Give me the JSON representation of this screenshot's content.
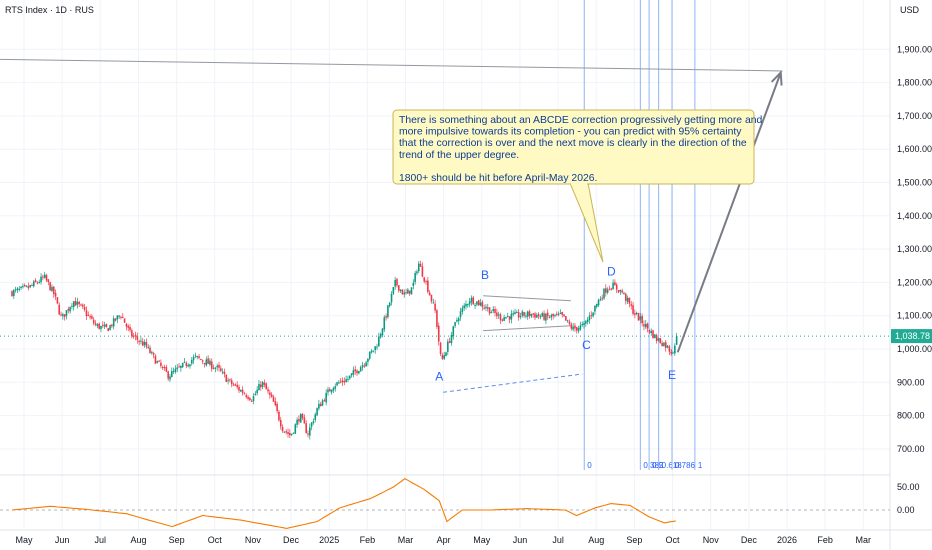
{
  "header": {
    "title": "RTS Index · 1D · RUS",
    "currency": "USD"
  },
  "price_axis": {
    "ticks": [
      {
        "value": 1900,
        "label": "1,900.00"
      },
      {
        "value": 1800,
        "label": "1,800.00"
      },
      {
        "value": 1700,
        "label": "1,700.00"
      },
      {
        "value": 1600,
        "label": "1,600.00"
      },
      {
        "value": 1500,
        "label": "1,500.00"
      },
      {
        "value": 1400,
        "label": "1,400.00"
      },
      {
        "value": 1300,
        "label": "1,300.00"
      },
      {
        "value": 1200,
        "label": "1,200.00"
      },
      {
        "value": 1100,
        "label": "1,100.00"
      },
      {
        "value": 1000,
        "label": "1,000.00"
      },
      {
        "value": 900,
        "label": "900.00"
      },
      {
        "value": 800,
        "label": "800.00"
      },
      {
        "value": 700,
        "label": "700.00"
      }
    ],
    "current_value": 1038.78,
    "current_label": "1,038.78",
    "current_color": "#22ab94"
  },
  "indicator_axis": {
    "ticks": [
      {
        "value": 50,
        "label": "50.00"
      },
      {
        "value": 0,
        "label": "0.00"
      }
    ]
  },
  "time_axis": {
    "labels": [
      {
        "m": 0,
        "label": "May"
      },
      {
        "m": 1,
        "label": "Jun"
      },
      {
        "m": 2,
        "label": "Jul"
      },
      {
        "m": 3,
        "label": "Aug"
      },
      {
        "m": 4,
        "label": "Sep"
      },
      {
        "m": 5,
        "label": "Oct"
      },
      {
        "m": 6,
        "label": "Nov"
      },
      {
        "m": 7,
        "label": "Dec"
      },
      {
        "m": 8,
        "label": "2025"
      },
      {
        "m": 9,
        "label": "Feb"
      },
      {
        "m": 10,
        "label": "Mar"
      },
      {
        "m": 11,
        "label": "Apr"
      },
      {
        "m": 12,
        "label": "May"
      },
      {
        "m": 13,
        "label": "Jun"
      },
      {
        "m": 14,
        "label": "Jul"
      },
      {
        "m": 15,
        "label": "Aug"
      },
      {
        "m": 16,
        "label": "Sep"
      },
      {
        "m": 17,
        "label": "Oct"
      },
      {
        "m": 18,
        "label": "Nov"
      },
      {
        "m": 19,
        "label": "Dec"
      },
      {
        "m": 20,
        "label": "2026"
      },
      {
        "m": 21,
        "label": "Feb"
      },
      {
        "m": 22,
        "label": "Mar"
      }
    ]
  },
  "colors": {
    "up": "#089981",
    "down": "#f23645",
    "annotation": "#2962ff",
    "oscillator": "#f57c00",
    "note_bg": "#fff9c4",
    "note_border": "#c9b458",
    "projection": "#787b86"
  },
  "annotation": {
    "note_lines": [
      "There is something about an ABCDE correction progressively getting more and",
      "more impulsive towards its completion - you can predict with 95% certainty",
      "that the correction is over and the next move is clearly in the direction of the",
      "trend of the upper degree.",
      "",
      "1800+ should be hit before April-May 2026."
    ],
    "wave_labels": [
      {
        "label": "A",
        "m": 11.2,
        "price": 905
      },
      {
        "label": "B",
        "m": 12.4,
        "price": 1210
      },
      {
        "label": "C",
        "m": 15.05,
        "price": 1000
      },
      {
        "label": "D",
        "m": 15.7,
        "price": 1220
      },
      {
        "label": "E",
        "m": 17.3,
        "price": 910
      }
    ],
    "fib_labels": [
      "0",
      "0.382",
      "0.5",
      "0.618",
      "0.786",
      "1"
    ]
  },
  "chart_data": {
    "type": "candlestick",
    "title": "RTS Index · 1D · RUS",
    "currency": "USD",
    "x_unit": "months since May 2024",
    "price_range": [
      640,
      1990
    ],
    "oscillator_range": [
      -45,
      80
    ],
    "close_path": [
      [
        0.0,
        1170
      ],
      [
        0.45,
        1185
      ],
      [
        0.85,
        1215
      ],
      [
        1.1,
        1165
      ],
      [
        1.3,
        1090
      ],
      [
        1.6,
        1145
      ],
      [
        1.85,
        1120
      ],
      [
        2.2,
        1070
      ],
      [
        2.5,
        1060
      ],
      [
        2.85,
        1105
      ],
      [
        3.1,
        1045
      ],
      [
        3.5,
        1010
      ],
      [
        3.8,
        960
      ],
      [
        4.1,
        920
      ],
      [
        4.5,
        950
      ],
      [
        4.8,
        975
      ],
      [
        5.1,
        960
      ],
      [
        5.4,
        940
      ],
      [
        5.7,
        900
      ],
      [
        6.0,
        875
      ],
      [
        6.3,
        850
      ],
      [
        6.55,
        900
      ],
      [
        6.85,
        840
      ],
      [
        7.1,
        760
      ],
      [
        7.3,
        740
      ],
      [
        7.55,
        800
      ],
      [
        7.75,
        745
      ],
      [
        8.0,
        820
      ],
      [
        8.4,
        890
      ],
      [
        8.8,
        910
      ],
      [
        9.2,
        955
      ],
      [
        9.55,
        1010
      ],
      [
        9.8,
        1100
      ],
      [
        10.05,
        1200
      ],
      [
        10.3,
        1160
      ],
      [
        10.5,
        1185
      ],
      [
        10.65,
        1260
      ],
      [
        10.85,
        1200
      ],
      [
        11.1,
        1110
      ],
      [
        11.25,
        960
      ],
      [
        11.35,
        990
      ],
      [
        11.7,
        1100
      ],
      [
        12.0,
        1150
      ],
      [
        12.3,
        1135
      ],
      [
        12.55,
        1115
      ],
      [
        12.8,
        1095
      ],
      [
        13.2,
        1100
      ],
      [
        13.6,
        1105
      ],
      [
        14.0,
        1095
      ],
      [
        14.4,
        1100
      ],
      [
        14.7,
        1060
      ],
      [
        15.0,
        1070
      ],
      [
        15.2,
        1110
      ],
      [
        15.45,
        1160
      ],
      [
        15.6,
        1185
      ],
      [
        15.75,
        1190
      ],
      [
        16.0,
        1170
      ],
      [
        16.3,
        1110
      ],
      [
        16.6,
        1070
      ],
      [
        16.9,
        1030
      ],
      [
        17.1,
        1015
      ],
      [
        17.3,
        990
      ],
      [
        17.45,
        1038.78
      ]
    ],
    "oscillator_path": [
      [
        0.0,
        0
      ],
      [
        1.0,
        8
      ],
      [
        2.0,
        1
      ],
      [
        3.0,
        -8
      ],
      [
        3.5,
        -20
      ],
      [
        4.2,
        -36
      ],
      [
        5.0,
        -12
      ],
      [
        6.0,
        -22
      ],
      [
        7.2,
        -40
      ],
      [
        8.0,
        -25
      ],
      [
        8.6,
        5
      ],
      [
        9.4,
        25
      ],
      [
        10.0,
        50
      ],
      [
        10.3,
        68
      ],
      [
        10.8,
        45
      ],
      [
        11.2,
        20
      ],
      [
        11.4,
        -25
      ],
      [
        11.8,
        0
      ],
      [
        12.5,
        0
      ],
      [
        13.5,
        3
      ],
      [
        14.5,
        0
      ],
      [
        14.8,
        -12
      ],
      [
        15.3,
        5
      ],
      [
        15.7,
        14
      ],
      [
        16.2,
        10
      ],
      [
        16.7,
        -15
      ],
      [
        17.1,
        -28
      ],
      [
        17.45,
        -23
      ]
    ],
    "triangle": {
      "upper": [
        [
          12.35,
          1160
        ],
        [
          14.65,
          1145
        ]
      ],
      "lower": [
        [
          12.35,
          1055
        ],
        [
          14.65,
          1070
        ]
      ]
    },
    "fib_time_extension": [
      15.0,
      16.47,
      16.7,
      16.95,
      17.3,
      17.9
    ],
    "projection_line": {
      "from": [
        17.45,
        990
      ],
      "to": [
        20.15,
        1830
      ]
    },
    "long_trendline": {
      "from": [
        -0.5,
        1870
      ],
      "to": [
        20.2,
        1835
      ]
    },
    "dashed_trendline": {
      "from": [
        11.3,
        870
      ],
      "to": [
        14.95,
        925
      ]
    }
  }
}
